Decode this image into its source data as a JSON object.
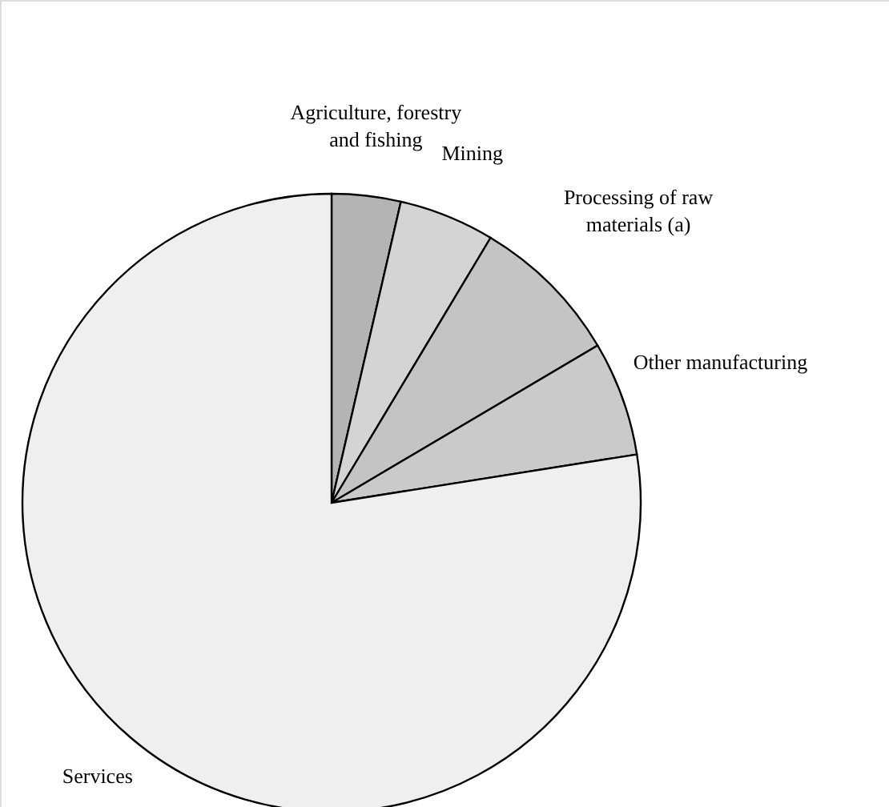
{
  "chart_data": {
    "type": "pie",
    "categories": [
      "Agriculture, forestry and fishing",
      "Mining",
      "Processing of raw materials (a)",
      "Other manufacturing",
      "Services"
    ],
    "values": [
      3.6,
      5.0,
      7.9,
      6.0,
      77.5
    ],
    "colors": [
      "#b4b4b4",
      "#d4d4d4",
      "#c4c4c4",
      "#cacaca",
      "#efefef"
    ]
  }
}
